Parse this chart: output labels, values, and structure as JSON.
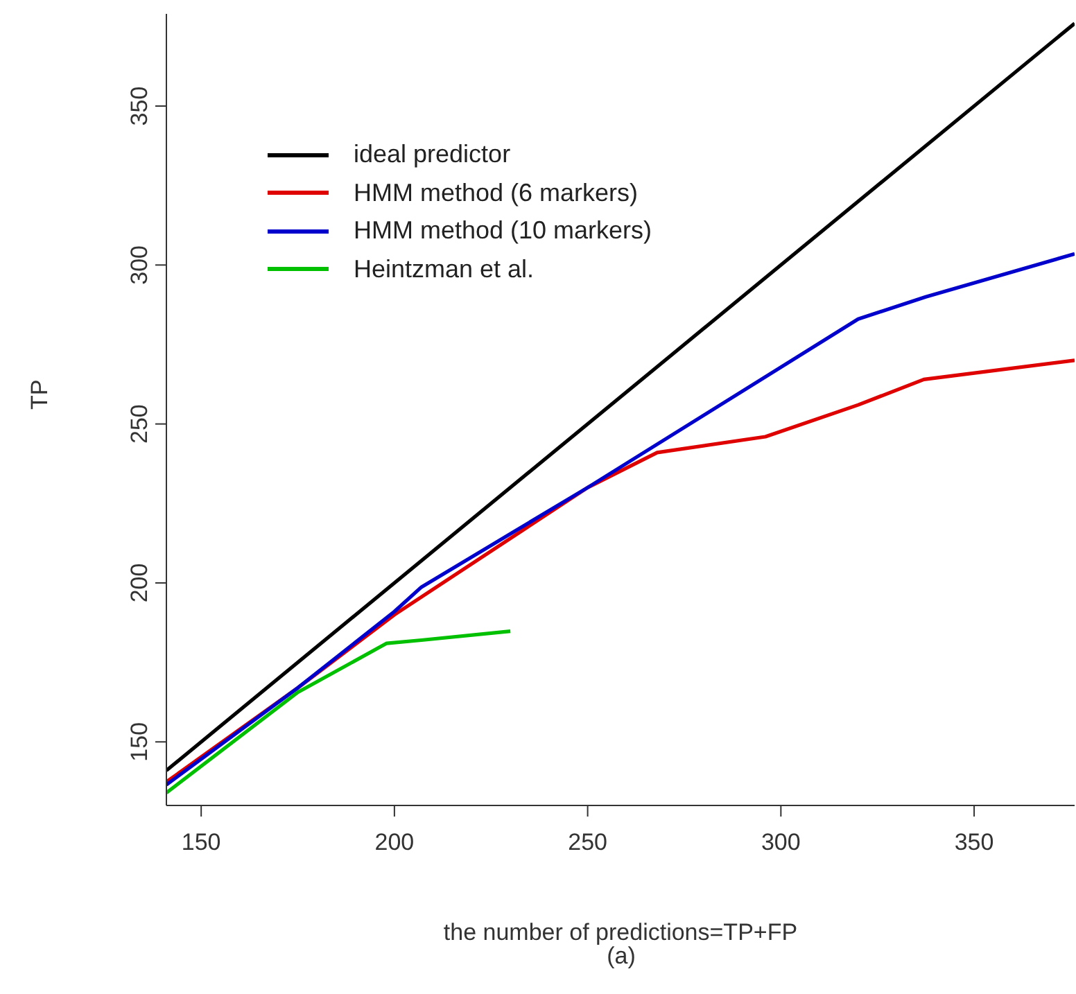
{
  "chart_data": {
    "type": "line",
    "xlabel": "the number of predictions=TP+FP",
    "ylabel": "TP",
    "annotations": [
      "(a)"
    ],
    "xlim": [
      141,
      376
    ],
    "ylim": [
      130,
      379
    ],
    "xticks": [
      150,
      200,
      250,
      300,
      350
    ],
    "yticks": [
      150,
      200,
      250,
      300,
      350
    ],
    "grid": false,
    "legend": "top left",
    "marker": "none",
    "line_style": "solid",
    "series": [
      {
        "name": "ideal predictor",
        "color": "#000000",
        "x": [
          141,
          376
        ],
        "values": [
          141,
          376
        ]
      },
      {
        "name": "HMM method (6 markers)",
        "color": "#df0000",
        "x": [
          141,
          175,
          200,
          250,
          268,
          296,
          320,
          337,
          376
        ],
        "values": [
          137.4,
          167,
          190,
          230,
          241,
          246,
          256,
          264,
          270
        ]
      },
      {
        "name": "HMM method (10 markers)",
        "color": "#0000cc",
        "x": [
          141,
          175,
          200,
          207,
          250,
          320,
          337.5,
          376
        ],
        "values": [
          136.5,
          167,
          191,
          198.7,
          230,
          283,
          290,
          303.5
        ]
      },
      {
        "name": "Heintzman et al.",
        "color": "#00c000",
        "x": [
          141,
          175,
          198,
          207,
          230
        ],
        "values": [
          134,
          165.6,
          181,
          182,
          184.8
        ]
      }
    ]
  }
}
